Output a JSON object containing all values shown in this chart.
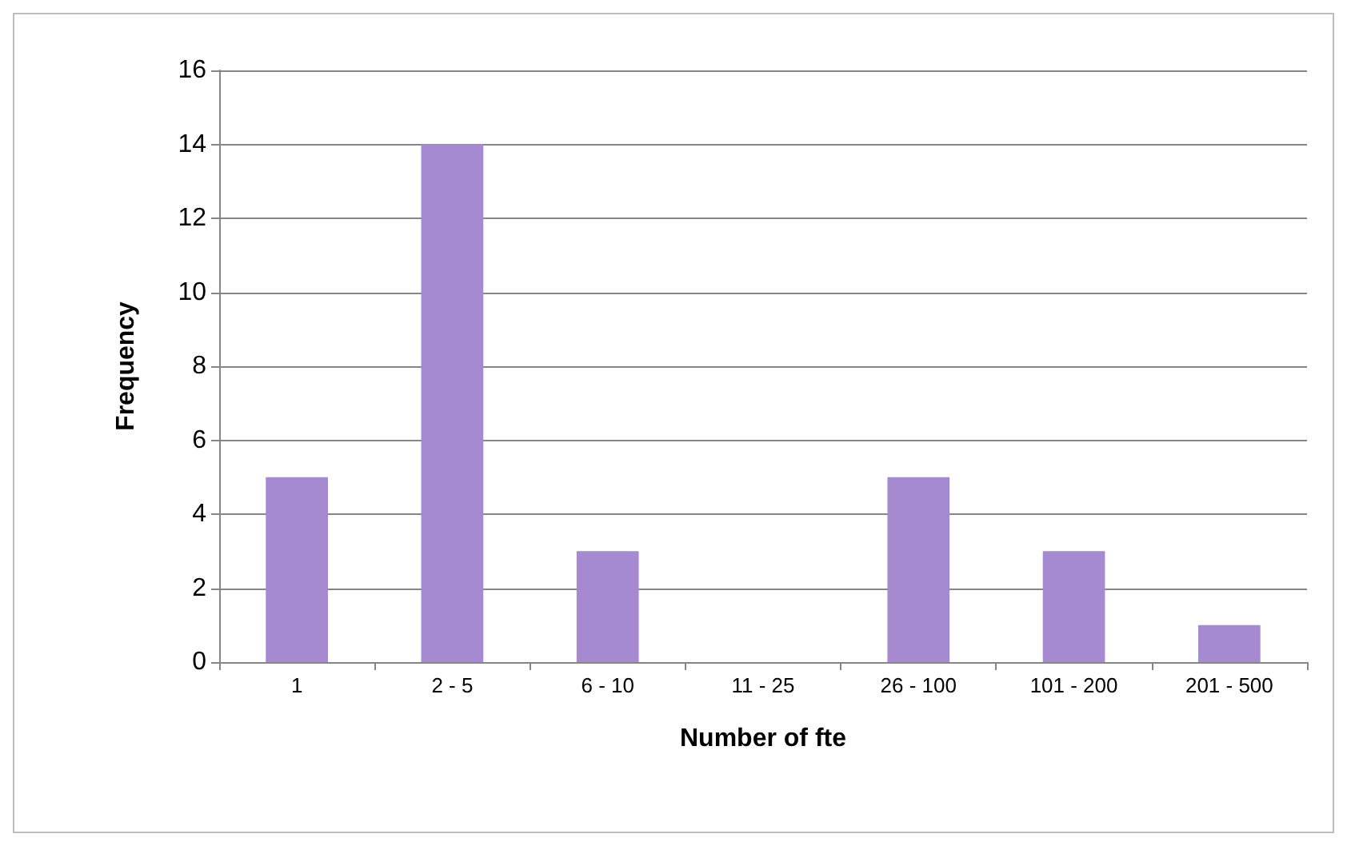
{
  "chart_data": {
    "type": "bar",
    "xlabel": "Number of fte",
    "ylabel": "Frequency",
    "categories": [
      "1",
      "2 - 5",
      "6 - 10",
      "11 - 25",
      "26 - 100",
      "101 - 200",
      "201 - 500"
    ],
    "values": [
      5,
      14,
      3,
      0,
      5,
      3,
      1
    ],
    "color": "#a58ad2",
    "ylim": [
      0,
      16
    ],
    "yticks": [
      0,
      2,
      4,
      6,
      8,
      10,
      12,
      14,
      16
    ],
    "grid": "y"
  }
}
